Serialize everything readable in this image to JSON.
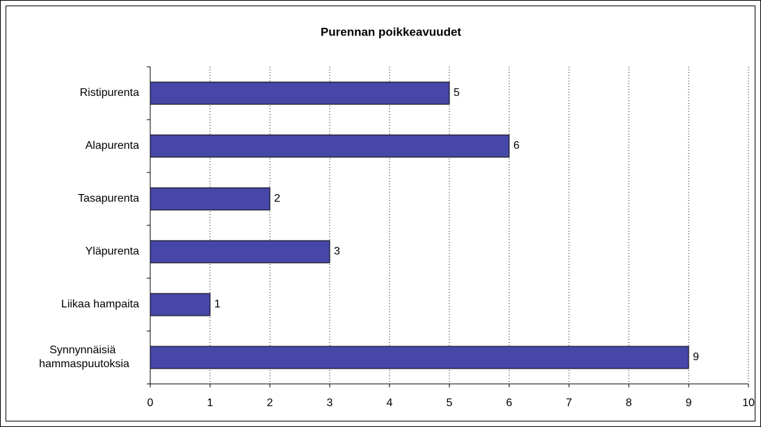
{
  "chart_data": {
    "type": "bar",
    "orientation": "horizontal",
    "title": "Purennan poikkeavuudet",
    "categories": [
      "Ristipurenta",
      "Alapurenta",
      "Tasapurenta",
      "Yläpurenta",
      "Liikaa hampaita",
      "Synnynnäisiä hammaspuutoksia"
    ],
    "values": [
      5,
      6,
      2,
      3,
      1,
      9
    ],
    "color": "#4747a8",
    "xlim": [
      0,
      10
    ],
    "xticks": [
      0,
      1,
      2,
      3,
      4,
      5,
      6,
      7,
      8,
      9,
      10
    ],
    "grid": true
  }
}
